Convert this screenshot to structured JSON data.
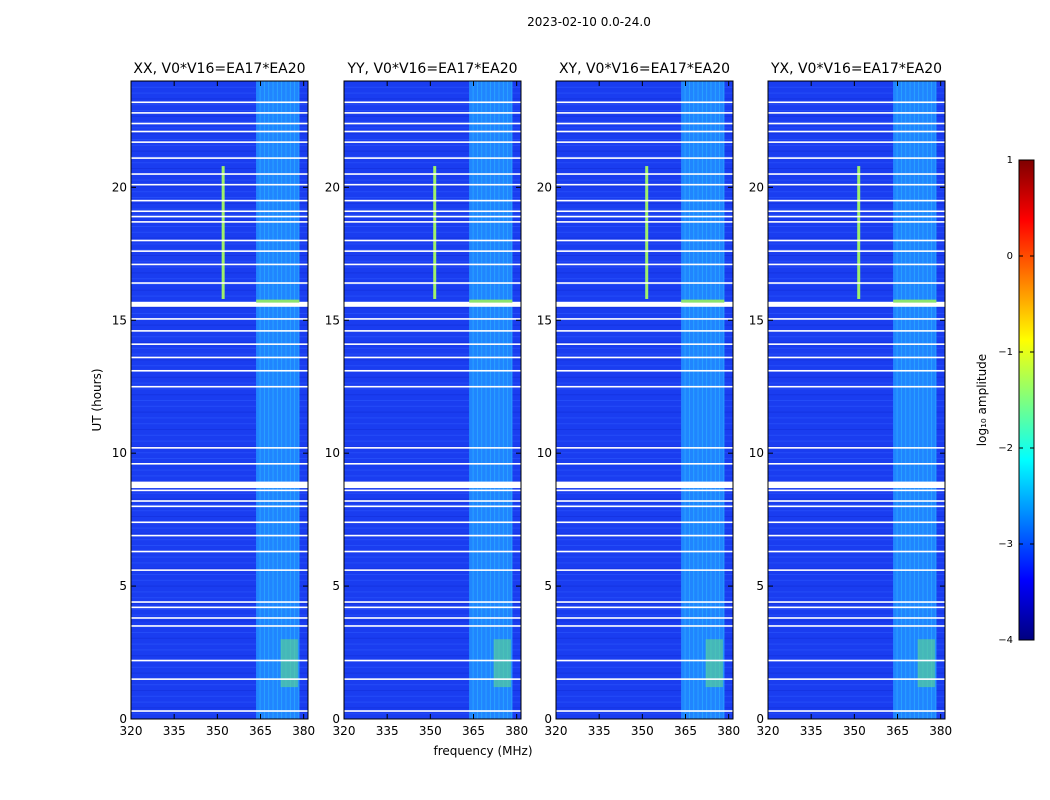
{
  "chart_data": {
    "type": "heatmap",
    "suptitle": "2023-02-10 0.0-24.0",
    "xlabel": "frequency (MHz)",
    "ylabel": "UT (hours)",
    "xlim": [
      320,
      381.5
    ],
    "ylim": [
      0,
      24
    ],
    "xticks": [
      320,
      335,
      350,
      365,
      380
    ],
    "xtick_labels": [
      "320",
      "335",
      "350",
      "365",
      "380"
    ],
    "yticks": [
      0,
      5,
      10,
      15,
      20
    ],
    "ytick_labels": [
      "0",
      "5",
      "10",
      "15",
      "20"
    ],
    "panels": [
      {
        "title": "XX, V0*V16=EA17*EA20",
        "rfi_columns_mhz": [
          351.5
        ]
      },
      {
        "title": "YY, V0*V16=EA17*EA20",
        "rfi_columns_mhz": [
          351.0
        ]
      },
      {
        "title": "XY, V0*V16=EA17*EA20",
        "rfi_columns_mhz": [
          351.0
        ]
      },
      {
        "title": "YX, V0*V16=EA17*EA20",
        "rfi_columns_mhz": [
          351.0
        ]
      }
    ],
    "strong_band_mhz": [
      363.5,
      378.5
    ],
    "flagged_ut_hours": [
      0.3,
      1.5,
      2.2,
      3.5,
      3.8,
      4.2,
      4.4,
      5.6,
      6.3,
      6.9,
      7.4,
      8.0,
      8.2,
      8.6,
      8.75,
      8.9,
      9.6,
      10.2,
      12.5,
      13.1,
      13.6,
      14.1,
      14.6,
      15.05,
      15.55,
      15.65,
      16.4,
      17.1,
      17.6,
      18.0,
      18.7,
      18.9,
      19.1,
      19.5,
      20.1,
      20.5,
      21.1,
      21.7,
      22.1,
      22.4,
      22.8,
      23.2
    ],
    "colorbar": {
      "label": "log₁₀ amplitude",
      "range": [
        -4,
        1
      ],
      "ticks": [
        "1",
        "0",
        "−1",
        "−2",
        "−3",
        "−4"
      ],
      "colormap": "jet",
      "colors": [
        "#00007f",
        "#0000ff",
        "#007fff",
        "#00ffff",
        "#7fff7f",
        "#ffff00",
        "#ff7f00",
        "#ff0000",
        "#7f0000"
      ]
    }
  }
}
